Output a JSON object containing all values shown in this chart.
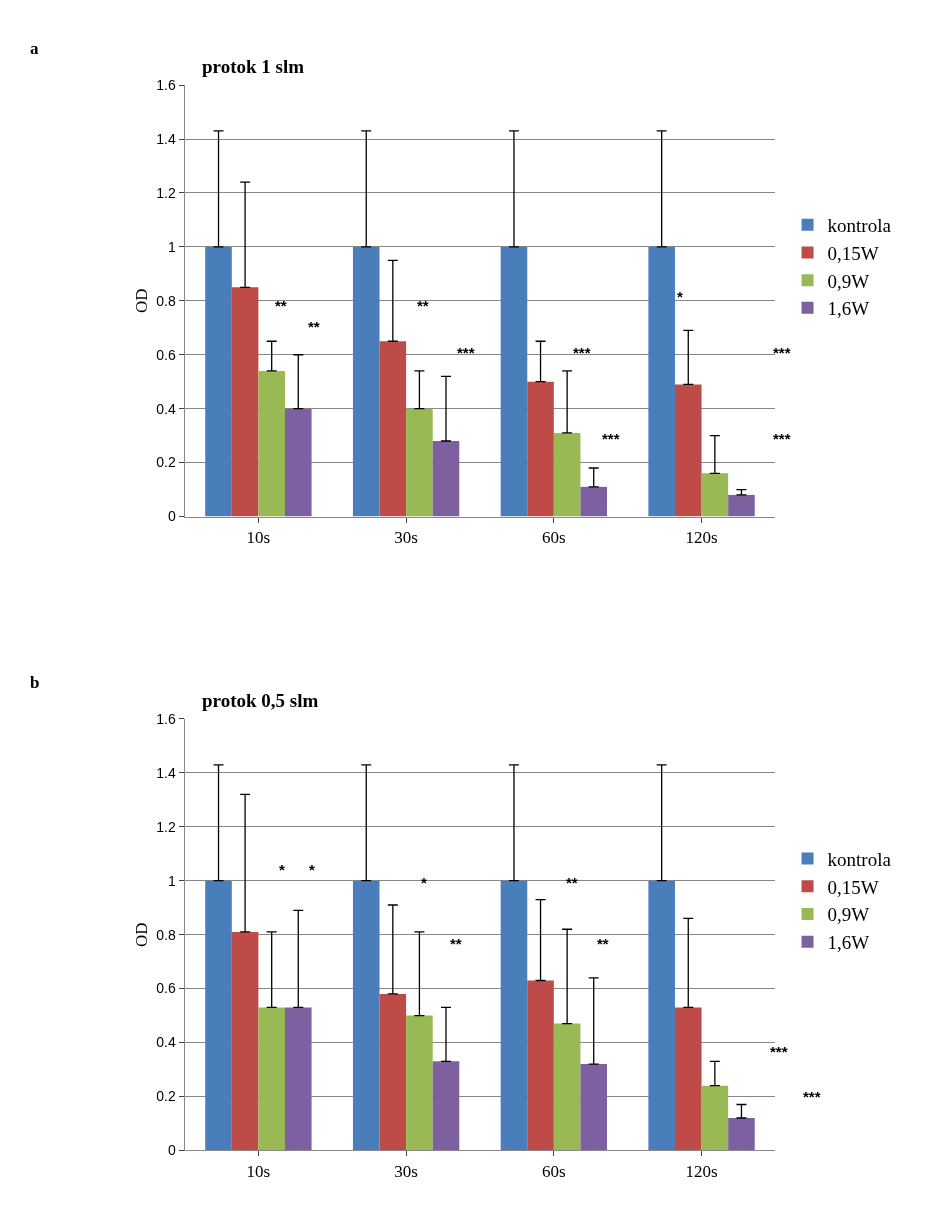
{
  "chart_data": [
    {
      "type": "bar",
      "title": "protok 1 slm",
      "ylabel": "OD",
      "categories": [
        "10s",
        "30s",
        "60s",
        "120s"
      ],
      "series": [
        {
          "name": "kontrola",
          "color": "#4a7ebb",
          "values": [
            1,
            1,
            1,
            1
          ],
          "errors": [
            [
              1,
              1.43
            ],
            [
              1,
              1.43
            ],
            [
              1,
              1.43
            ],
            [
              1,
              1.43
            ]
          ]
        },
        {
          "name": "0,15W",
          "color": "#be4b48",
          "values": [
            0.85,
            0.65,
            0.5,
            0.49
          ],
          "errors": [
            [
              0.85,
              1.24
            ],
            [
              0.65,
              0.95
            ],
            [
              0.5,
              0.65
            ],
            [
              0.49,
              0.69
            ]
          ]
        },
        {
          "name": "0,9W",
          "color": "#98b954",
          "values": [
            0.54,
            0.4,
            0.31,
            0.16
          ],
          "errors": [
            [
              0.54,
              0.65
            ],
            [
              0.4,
              0.54
            ],
            [
              0.31,
              0.54
            ],
            [
              0.16,
              0.3
            ]
          ]
        },
        {
          "name": "1,6W",
          "color": "#7d60a0",
          "values": [
            0.4,
            0.28,
            0.11,
            0.08
          ],
          "errors": [
            [
              0.4,
              0.6
            ],
            [
              0.28,
              0.52
            ],
            [
              0.11,
              0.18
            ],
            [
              0.08,
              0.1
            ]
          ]
        }
      ],
      "ylim": [
        0,
        1.6
      ],
      "yticks": [
        0,
        0.2,
        0.4,
        0.6,
        0.8,
        1,
        1.2,
        1.4,
        1.6
      ],
      "grid": "y",
      "legend": "right",
      "annotations": [
        "a",
        "**",
        "**",
        "**",
        "***",
        "***",
        "***",
        "*",
        "***",
        "***"
      ]
    },
    {
      "type": "bar",
      "title": "protok 0,5 slm",
      "ylabel": "OD",
      "categories": [
        "10s",
        "30s",
        "60s",
        "120s"
      ],
      "series": [
        {
          "name": "kontrola",
          "color": "#4a7ebb",
          "values": [
            1,
            1,
            1,
            1
          ],
          "errors": [
            [
              1,
              1.43
            ],
            [
              1,
              1.43
            ],
            [
              1,
              1.43
            ],
            [
              1,
              1.43
            ]
          ]
        },
        {
          "name": "0,15W",
          "color": "#be4b48",
          "values": [
            0.81,
            0.58,
            0.63,
            0.53
          ],
          "errors": [
            [
              0.81,
              1.32
            ],
            [
              0.58,
              0.91
            ],
            [
              0.63,
              0.93
            ],
            [
              0.53,
              0.86
            ]
          ]
        },
        {
          "name": "0,9W",
          "color": "#98b954",
          "values": [
            0.53,
            0.5,
            0.47,
            0.24
          ],
          "errors": [
            [
              0.53,
              0.81
            ],
            [
              0.5,
              0.81
            ],
            [
              0.47,
              0.82
            ],
            [
              0.24,
              0.33
            ]
          ]
        },
        {
          "name": "1,6W",
          "color": "#7d60a0",
          "values": [
            0.53,
            0.33,
            0.32,
            0.12
          ],
          "errors": [
            [
              0.53,
              0.89
            ],
            [
              0.33,
              0.53
            ],
            [
              0.32,
              0.64
            ],
            [
              0.12,
              0.17
            ]
          ]
        }
      ],
      "ylim": [
        0,
        1.6
      ],
      "yticks": [
        0,
        0.2,
        0.4,
        0.6,
        0.8,
        1,
        1.2,
        1.4,
        1.6
      ],
      "grid": "y",
      "legend": "right",
      "annotations": [
        "b",
        "*",
        "*",
        "*",
        "**",
        "**",
        "**",
        "***",
        "***"
      ]
    }
  ]
}
